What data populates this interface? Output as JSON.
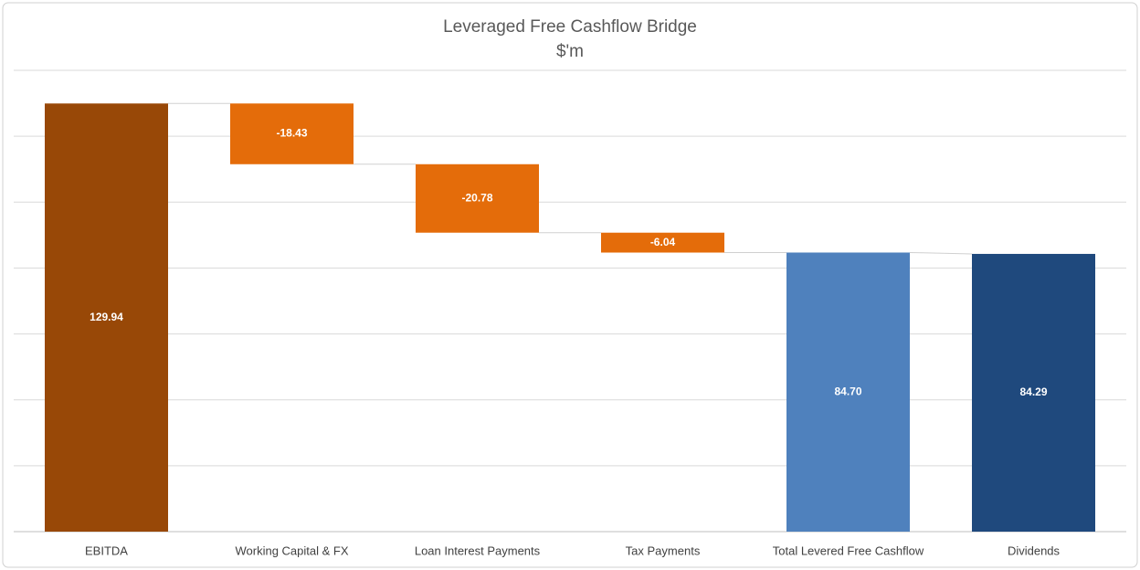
{
  "chart_data": {
    "type": "waterfall",
    "title": "Leveraged Free Cashflow Bridge",
    "subtitle": "$'m",
    "categories": [
      "EBITDA",
      "Working Capital & FX",
      "Loan Interest Payments",
      "Tax Payments",
      "Total Levered Free Cashflow",
      "Dividends"
    ],
    "values": [
      129.94,
      -18.43,
      -20.78,
      -6.04,
      84.7,
      84.29
    ],
    "value_labels": [
      "129.94",
      "-18.43",
      "-20.78",
      "-6.04",
      "84.70",
      "84.29"
    ],
    "bar_kinds": [
      "total",
      "delta",
      "delta",
      "delta",
      "total",
      "total"
    ],
    "colors": [
      "#984807",
      "#e46c0a",
      "#e46c0a",
      "#e46c0a",
      "#4f81bd",
      "#1f497d"
    ],
    "ylim": [
      0,
      140
    ],
    "yticks": [
      0,
      20,
      40,
      60,
      80,
      100,
      120,
      140
    ],
    "grid": true,
    "show_ytick_labels": false
  }
}
